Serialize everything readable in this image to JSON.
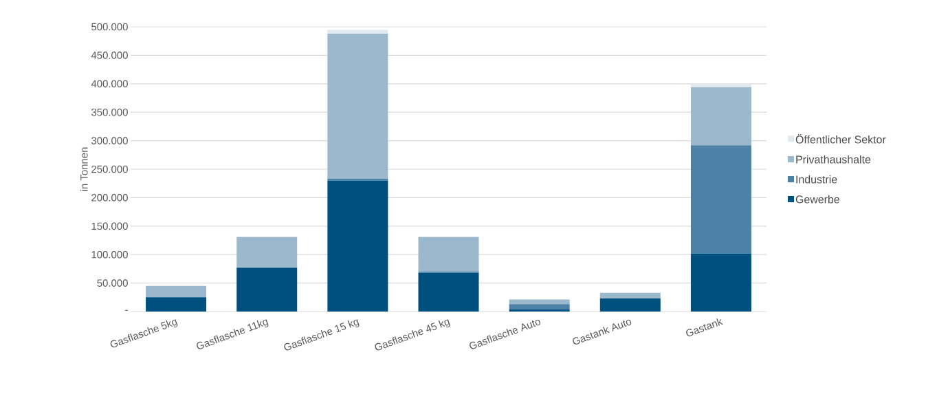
{
  "chart_data": {
    "type": "bar",
    "stacked": true,
    "ylabel": "in Tonnen",
    "categories": [
      "Gasflasche 5kg",
      "Gasflasche 11kg",
      "Gasflasche 15 kg",
      "Gasflasche 45 kg",
      "Gasflasche Auto",
      "Gastank Auto",
      "Gastank"
    ],
    "series": [
      {
        "name": "Gewerbe",
        "color": "#00507f",
        "values": [
          25000,
          77000,
          230000,
          68000,
          4000,
          23000,
          102000
        ]
      },
      {
        "name": "Industrie",
        "color": "#4d82a6",
        "values": [
          null,
          null,
          3000,
          2000,
          9000,
          null,
          190000
        ]
      },
      {
        "name": "Privathaushalte",
        "color": "#9bb8cc",
        "values": [
          20000,
          54000,
          255000,
          61000,
          8000,
          10000,
          102000
        ]
      },
      {
        "name": "Öffentlicher Sektor",
        "color": "#e2eaf1",
        "values": [
          null,
          null,
          7000,
          null,
          null,
          null,
          6000
        ]
      }
    ],
    "ylim": [
      0,
      500000
    ],
    "yticks": [
      {
        "value": 0,
        "label": "-"
      },
      {
        "value": 50000,
        "label": "50.000"
      },
      {
        "value": 100000,
        "label": "100.000"
      },
      {
        "value": 150000,
        "label": "150.000"
      },
      {
        "value": 200000,
        "label": "200.000"
      },
      {
        "value": 250000,
        "label": "250.000"
      },
      {
        "value": 300000,
        "label": "300.000"
      },
      {
        "value": 350000,
        "label": "350.000"
      },
      {
        "value": 400000,
        "label": "400.000"
      },
      {
        "value": 450000,
        "label": "450.000"
      },
      {
        "value": 500000,
        "label": "500.000"
      }
    ],
    "grid": "y",
    "legend": "right"
  }
}
